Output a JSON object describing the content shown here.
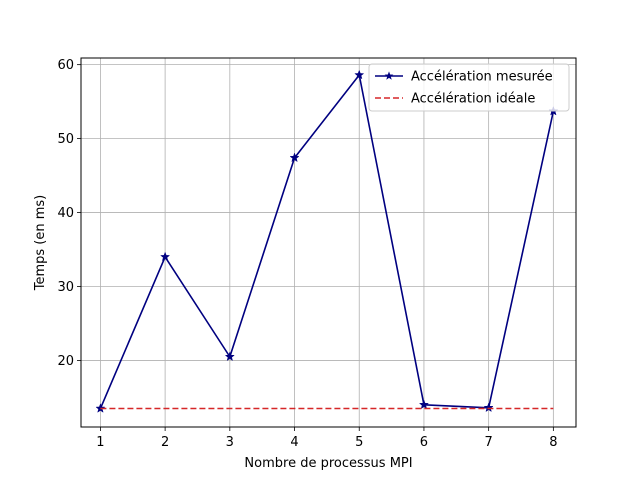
{
  "chart_data": {
    "type": "line",
    "title": "",
    "xlabel": "Nombre de processus MPI",
    "ylabel": "Temps (en ms)",
    "x": [
      1,
      2,
      3,
      4,
      5,
      6,
      7,
      8
    ],
    "xticks": [
      "1",
      "2",
      "3",
      "4",
      "5",
      "6",
      "7",
      "8"
    ],
    "yticks": [
      "20",
      "30",
      "40",
      "50",
      "60"
    ],
    "xlim": [
      0.7,
      8.35
    ],
    "ylim": [
      11.0,
      60.9
    ],
    "grid": true,
    "legend_position": "top-right",
    "series": [
      {
        "name": "Accélération mesurée",
        "values": [
          13.5,
          34.0,
          20.5,
          47.4,
          58.6,
          14.0,
          13.6,
          53.7
        ],
        "color": "#000080",
        "style": "solid",
        "marker": "star"
      },
      {
        "name": "Accélération idéale",
        "values": [
          13.5,
          13.5,
          13.5,
          13.5,
          13.5,
          13.5,
          13.5,
          13.5
        ],
        "color": "#d62728",
        "style": "dashed",
        "marker": "none"
      }
    ]
  }
}
